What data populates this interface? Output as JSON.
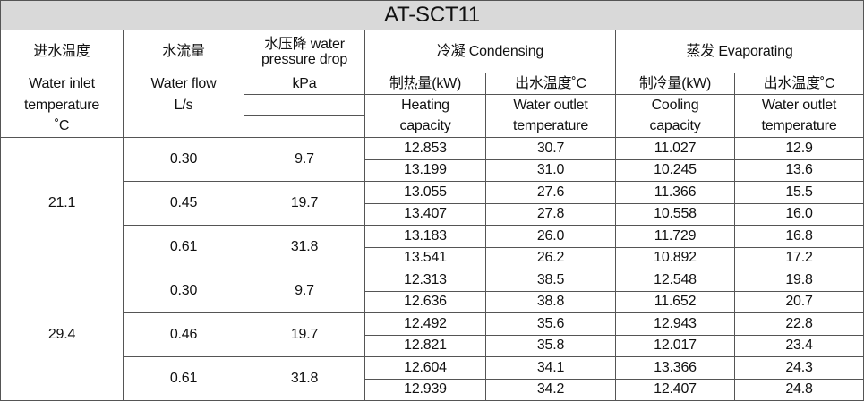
{
  "title": "AT-SCT11",
  "header": {
    "inlet_temp": "进水温度",
    "water_flow": "水流量",
    "pressure_drop": "水压降 water pressure drop",
    "condensing": "冷凝 Condensing",
    "evaporating": "蒸发 Evaporating"
  },
  "subheader": {
    "row1": [
      "Water inlet",
      "Water flow",
      "kPa",
      "制热量(kW)",
      "出水温度˚C",
      "制冷量(kW)",
      "出水温度˚C"
    ],
    "row2": [
      "temperature",
      "L/s",
      "",
      "Heating",
      "Water outlet",
      "Cooling",
      "Water outlet"
    ],
    "row3": [
      "˚C",
      "",
      "",
      "capacity",
      "temperature",
      "capacity",
      "temperature"
    ]
  },
  "groups": [
    {
      "inlet_temp": "21.1",
      "flows": [
        {
          "flow": "0.30",
          "pressure_drop": "9.7",
          "rows": [
            {
              "heating": "12.853",
              "cond_outlet": "30.7",
              "cooling": "11.027",
              "evap_outlet": "12.9"
            },
            {
              "heating": "13.199",
              "cond_outlet": "31.0",
              "cooling": "10.245",
              "evap_outlet": "13.6"
            }
          ]
        },
        {
          "flow": "0.45",
          "pressure_drop": "19.7",
          "rows": [
            {
              "heating": "13.055",
              "cond_outlet": "27.6",
              "cooling": "11.366",
              "evap_outlet": "15.5"
            },
            {
              "heating": "13.407",
              "cond_outlet": "27.8",
              "cooling": "10.558",
              "evap_outlet": "16.0"
            }
          ]
        },
        {
          "flow": "0.61",
          "pressure_drop": "31.8",
          "rows": [
            {
              "heating": "13.183",
              "cond_outlet": "26.0",
              "cooling": "11.729",
              "evap_outlet": "16.8"
            },
            {
              "heating": "13.541",
              "cond_outlet": "26.2",
              "cooling": "10.892",
              "evap_outlet": "17.2"
            }
          ]
        }
      ]
    },
    {
      "inlet_temp": "29.4",
      "flows": [
        {
          "flow": "0.30",
          "pressure_drop": "9.7",
          "rows": [
            {
              "heating": "12.313",
              "cond_outlet": "38.5",
              "cooling": "12.548",
              "evap_outlet": "19.8"
            },
            {
              "heating": "12.636",
              "cond_outlet": "38.8",
              "cooling": "11.652",
              "evap_outlet": "20.7"
            }
          ]
        },
        {
          "flow": "0.46",
          "pressure_drop": "19.7",
          "rows": [
            {
              "heating": "12.492",
              "cond_outlet": "35.6",
              "cooling": "12.943",
              "evap_outlet": "22.8"
            },
            {
              "heating": "12.821",
              "cond_outlet": "35.8",
              "cooling": "12.017",
              "evap_outlet": "23.4"
            }
          ]
        },
        {
          "flow": "0.61",
          "pressure_drop": "31.8",
          "rows": [
            {
              "heating": "12.604",
              "cond_outlet": "34.1",
              "cooling": "13.366",
              "evap_outlet": "24.3"
            },
            {
              "heating": "12.939",
              "cond_outlet": "34.2",
              "cooling": "12.407",
              "evap_outlet": "24.8"
            }
          ]
        }
      ]
    }
  ]
}
